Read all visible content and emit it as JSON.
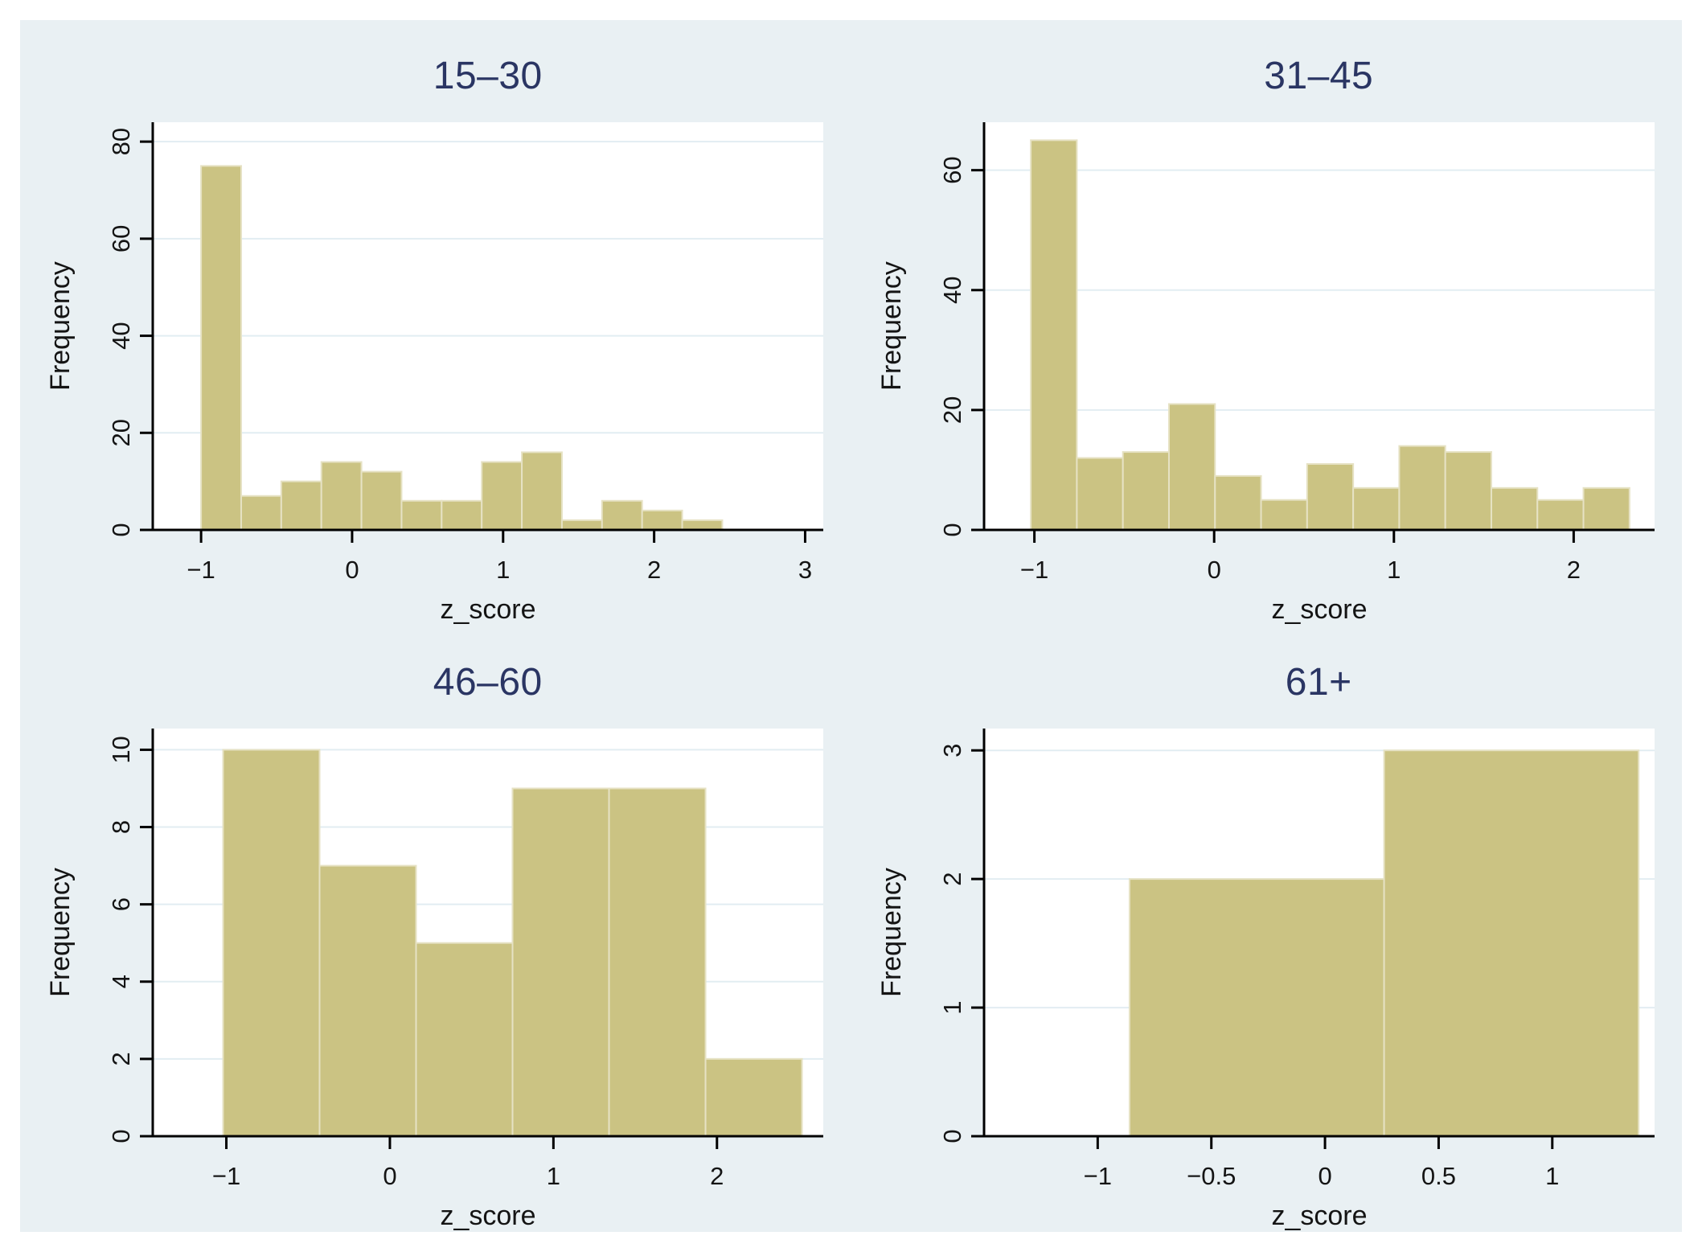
{
  "figure": {
    "page_background": "#ffffff",
    "canvas_background": "#e9f0f3",
    "plot_background": "#ffffff",
    "bar_color": "#cbc383",
    "bar_edge_color": "#e6e2c4",
    "grid_color": "#e2edf2",
    "axis_color": "#000000",
    "tick_color": "#141414",
    "title_color": "#2a3563"
  },
  "chart_data": [
    {
      "type": "bar",
      "subtype": "histogram",
      "title": "15–30",
      "xlabel": "z_score",
      "ylabel": "Frequency",
      "bin_start": -1.0,
      "bin_width": 0.2655,
      "values": [
        75,
        7,
        10,
        14,
        12,
        6,
        6,
        14,
        16,
        2,
        6,
        4,
        2
      ],
      "xticks": [
        -1,
        0,
        1,
        2,
        3
      ],
      "xtick_labels": [
        "−1",
        "0",
        "1",
        "2",
        "3"
      ],
      "yticks": [
        0,
        20,
        40,
        60,
        80
      ],
      "ytick_labels": [
        "0",
        "20",
        "40",
        "60",
        "80"
      ],
      "xlim": [
        -1.32,
        3.12
      ],
      "ylim": [
        0,
        84
      ],
      "grid": true,
      "legend": "none"
    },
    {
      "type": "bar",
      "subtype": "histogram",
      "title": "31–45",
      "xlabel": "z_score",
      "ylabel": "Frequency",
      "bin_start": -1.02,
      "bin_width": 0.2562,
      "values": [
        65,
        12,
        13,
        21,
        9,
        5,
        11,
        7,
        14,
        13,
        7,
        5,
        7
      ],
      "xticks": [
        -1,
        0,
        1,
        2
      ],
      "xtick_labels": [
        "−1",
        "0",
        "1",
        "2"
      ],
      "yticks": [
        0,
        20,
        40,
        60
      ],
      "ytick_labels": [
        "0",
        "20",
        "40",
        "60"
      ],
      "xlim": [
        -1.28,
        2.45
      ],
      "ylim": [
        0,
        68
      ],
      "grid": true,
      "legend": "none"
    },
    {
      "type": "bar",
      "subtype": "histogram",
      "title": "46–60",
      "xlabel": "z_score",
      "ylabel": "Frequency",
      "bin_start": -1.02,
      "bin_width": 0.59,
      "values": [
        10,
        7,
        5,
        9,
        9,
        2
      ],
      "xticks": [
        -1,
        0,
        1,
        2
      ],
      "xtick_labels": [
        "−1",
        "0",
        "1",
        "2"
      ],
      "yticks": [
        0,
        2,
        4,
        6,
        8,
        10
      ],
      "ytick_labels": [
        "0",
        "2",
        "4",
        "6",
        "8",
        "10"
      ],
      "xlim": [
        -1.45,
        2.65
      ],
      "ylim": [
        0,
        10.55
      ],
      "grid": true,
      "legend": "none"
    },
    {
      "type": "bar",
      "subtype": "histogram",
      "title": "61+",
      "xlabel": "z_score",
      "ylabel": "Frequency",
      "bin_start": -0.86,
      "bin_width": 1.12,
      "values": [
        2,
        3
      ],
      "xticks": [
        -1,
        -0.5,
        0,
        0.5,
        1
      ],
      "xtick_labels": [
        "−1",
        "−0.5",
        "0",
        "0.5",
        "1"
      ],
      "yticks": [
        0,
        1,
        2,
        3
      ],
      "ytick_labels": [
        "0",
        "1",
        "2",
        "3"
      ],
      "xlim": [
        -1.5,
        1.45
      ],
      "ylim": [
        0,
        3.17
      ],
      "grid": true,
      "legend": "none"
    }
  ]
}
